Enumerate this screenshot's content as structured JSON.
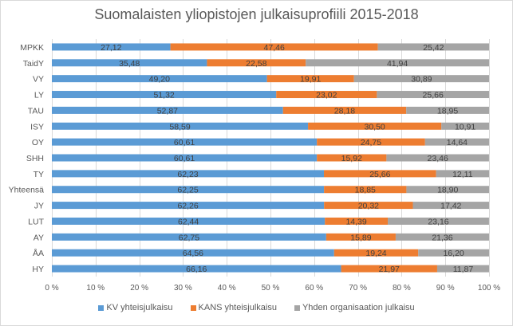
{
  "chart_data": {
    "type": "bar",
    "orientation": "horizontal",
    "stacked": "percent",
    "title": "Suomalaisten yliopistojen julkaisuprofiili 2015-2018",
    "xlabel": "",
    "ylabel": "",
    "xlim": [
      0,
      100
    ],
    "grid": true,
    "legend_position": "bottom",
    "x_ticks": [
      "0 %",
      "10 %",
      "20 %",
      "30 %",
      "40 %",
      "50 %",
      "60 %",
      "70 %",
      "80 %",
      "90 %",
      "100 %"
    ],
    "categories": [
      "MPKK",
      "TaidY",
      "VY",
      "LY",
      "TAU",
      "ISY",
      "OY",
      "SHH",
      "TY",
      "Yhteensä",
      "JY",
      "LUT",
      "AY",
      "ÅA",
      "HY"
    ],
    "series": [
      {
        "name": "KV yhteisjulkaisu",
        "color": "#5b9bd5",
        "values": [
          27.12,
          35.48,
          49.2,
          51.32,
          52.87,
          58.59,
          60.61,
          60.61,
          62.23,
          62.25,
          62.26,
          62.44,
          62.75,
          64.56,
          66.16
        ],
        "labels": [
          "27,12",
          "35,48",
          "49,20",
          "51,32",
          "52,87",
          "58,59",
          "60,61",
          "60,61",
          "62,23",
          "62,25",
          "62,26",
          "62,44",
          "62,75",
          "64,56",
          "66,16"
        ]
      },
      {
        "name": "KANS yhteisjulkaisu",
        "color": "#ed7d31",
        "values": [
          47.46,
          22.58,
          19.91,
          23.02,
          28.18,
          30.5,
          24.75,
          15.92,
          25.66,
          18.85,
          20.32,
          14.39,
          15.89,
          19.24,
          21.97
        ],
        "labels": [
          "47,46",
          "22,58",
          "19,91",
          "23,02",
          "28,18",
          "30,50",
          "24,75",
          "15,92",
          "25,66",
          "18,85",
          "20,32",
          "14,39",
          "15,89",
          "19,24",
          "21,97"
        ]
      },
      {
        "name": "Yhden organisaation julkaisu",
        "color": "#a5a5a5",
        "values": [
          25.42,
          41.94,
          30.89,
          25.66,
          18.95,
          10.91,
          14.64,
          23.46,
          12.11,
          18.9,
          17.42,
          23.16,
          21.36,
          16.2,
          11.87
        ],
        "labels": [
          "25,42",
          "41,94",
          "30,89",
          "25,66",
          "18,95",
          "10,91",
          "14,64",
          "23,46",
          "12,11",
          "18,90",
          "17,42",
          "23,16",
          "21,36",
          "16,20",
          "11,87"
        ]
      }
    ]
  }
}
